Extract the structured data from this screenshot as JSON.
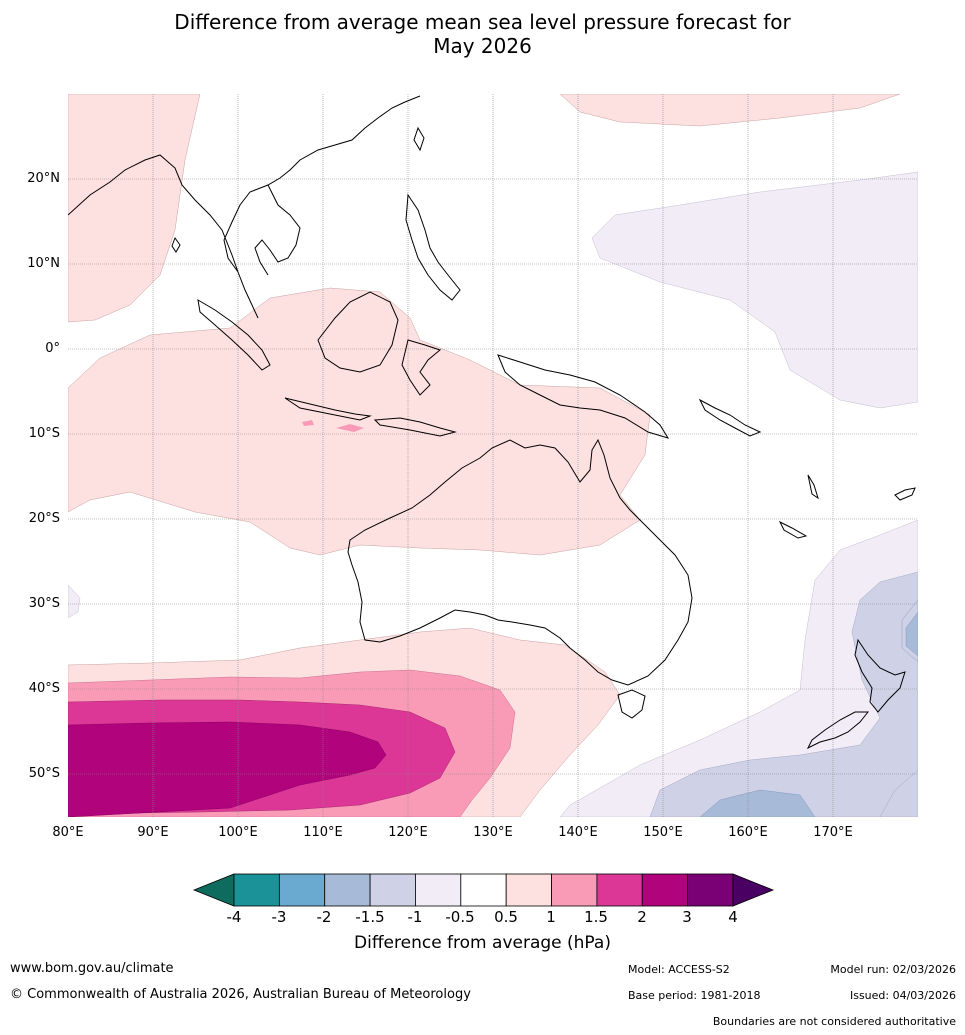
{
  "title_line1": "Difference from average mean sea level pressure forecast for",
  "title_line2": "May 2026",
  "lat_labels": [
    "20°N",
    "10°N",
    "0°",
    "10°S",
    "20°S",
    "30°S",
    "40°S",
    "50°S"
  ],
  "lon_labels": [
    "80°E",
    "90°E",
    "100°E",
    "110°E",
    "120°E",
    "130°E",
    "140°E",
    "150°E",
    "160°E",
    "170°E"
  ],
  "colorbar": {
    "ticks": [
      "-4",
      "-3",
      "-2",
      "-1.5",
      "-1",
      "-0.5",
      "0.5",
      "1",
      "1.5",
      "2",
      "3",
      "4"
    ],
    "colors": [
      "#0e6b5e",
      "#1b9297",
      "#6aaad1",
      "#a7bbd8",
      "#cfd2e6",
      "#f1ecf5",
      "#ffffff",
      "#fde0e0",
      "#f99bb6",
      "#dc3696",
      "#b1037c",
      "#7a0075",
      "#4a0063"
    ],
    "label": "Difference from average (hPa)"
  },
  "footer": {
    "url": "www.bom.gov.au/climate",
    "copyright": "© Commonwealth of Australia 2026, Australian Bureau of Meteorology",
    "model": "Model: ACCESS-S2",
    "model_run": "Model run: 02/03/2026",
    "base_period": "Base period: 1981-2018",
    "issued": "Issued: 04/03/2026",
    "boundaries": "Boundaries are not considered authoritative"
  }
}
